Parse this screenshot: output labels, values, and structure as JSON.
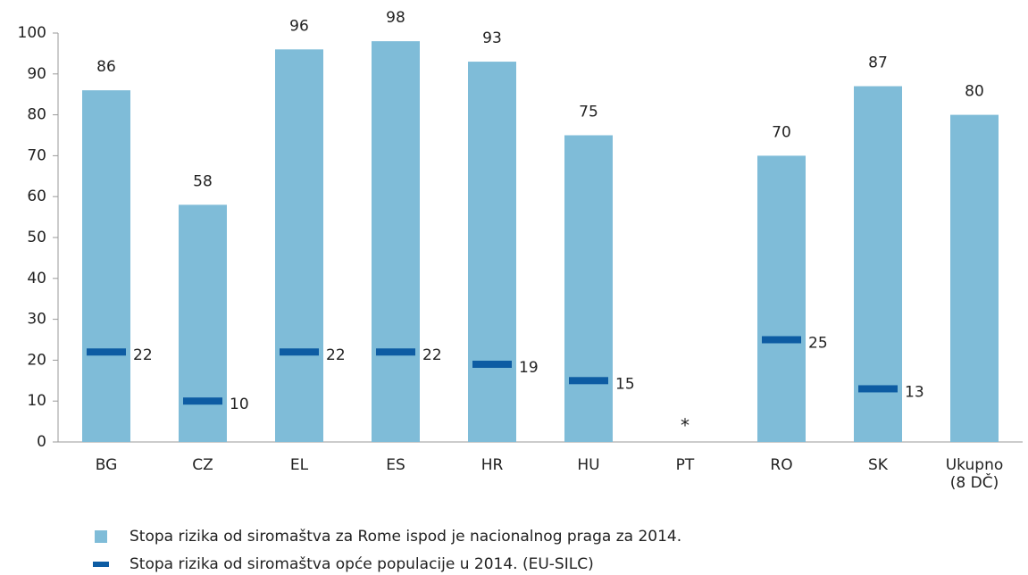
{
  "chart_data": {
    "type": "bar",
    "categories": [
      "BG",
      "CZ",
      "EL",
      "ES",
      "HR",
      "HU",
      "PT",
      "RO",
      "SK",
      "Ukupno (8 DČ)"
    ],
    "series": [
      {
        "name": "Stopa rizika od siromaštva za Rome ispod je nacionalnog praga za 2014.",
        "color": "#7fbcd8",
        "type": "bar",
        "values": [
          86,
          58,
          96,
          98,
          93,
          75,
          null,
          70,
          87,
          80
        ]
      },
      {
        "name": "Stopa rizika od siromaštva opće populacije u 2014. (EU-SILC)",
        "color": "#0d5ca3",
        "type": "marker",
        "values": [
          22,
          10,
          22,
          22,
          19,
          15,
          null,
          25,
          13,
          null
        ]
      }
    ],
    "annotations": [
      {
        "category": "PT",
        "text": "*"
      }
    ],
    "ylim": [
      0,
      100
    ],
    "yticks": [
      0,
      10,
      20,
      30,
      40,
      50,
      60,
      70,
      80,
      90,
      100
    ],
    "grid": false
  }
}
